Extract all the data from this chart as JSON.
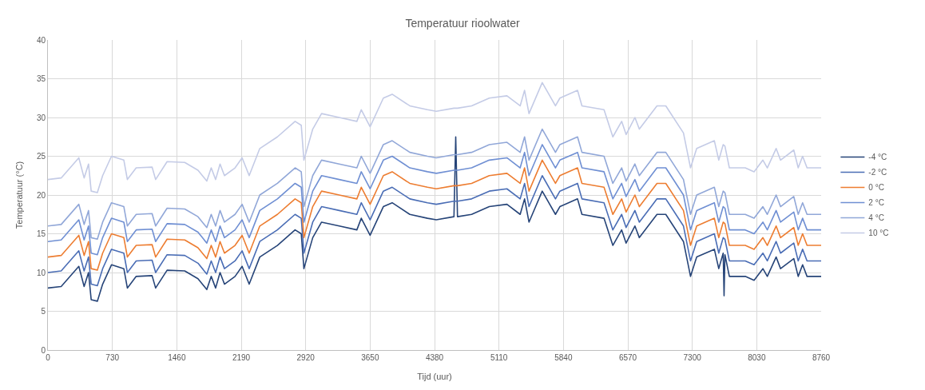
{
  "chart_data": {
    "type": "line",
    "title": "Temperatuur rioolwater",
    "xlabel": "Tijd (uur)",
    "ylabel": "Temperatuur (°C)",
    "x": [
      0,
      150,
      350,
      410,
      460,
      490,
      560,
      620,
      720,
      860,
      900,
      1000,
      1180,
      1220,
      1350,
      1550,
      1700,
      1800,
      1850,
      1900,
      1950,
      2000,
      2120,
      2200,
      2280,
      2400,
      2600,
      2800,
      2870,
      2900,
      3000,
      3100,
      3300,
      3500,
      3550,
      3650,
      3800,
      3900,
      4100,
      4300,
      4400,
      4600,
      4620,
      4640,
      4800,
      5000,
      5200,
      5350,
      5400,
      5450,
      5600,
      5750,
      5800,
      6000,
      6050,
      6300,
      6400,
      6500,
      6550,
      6650,
      6700,
      6900,
      7000,
      7200,
      7280,
      7350,
      7550,
      7600,
      7650,
      7660,
      7670,
      7720,
      7900,
      8000,
      8100,
      8150,
      8250,
      8300,
      8450,
      8500,
      8550,
      8600,
      8760
    ],
    "series": [
      {
        "name": "-4 °C",
        "color": "#264478",
        "values": [
          8,
          8.2,
          10.8,
          8.2,
          10,
          6.5,
          6.3,
          8.5,
          11,
          10.5,
          8,
          9.5,
          9.6,
          8,
          10.3,
          10.2,
          9.2,
          7.8,
          9.5,
          8,
          10,
          8.5,
          9.5,
          10.8,
          8.5,
          12,
          13.5,
          15.5,
          15,
          10.5,
          14.5,
          16.5,
          16,
          15.5,
          17,
          14.8,
          18.5,
          19,
          17.5,
          17,
          16.8,
          17.2,
          27.5,
          17.2,
          17.5,
          18.5,
          18.8,
          17.5,
          19.5,
          16.5,
          20.5,
          17.5,
          18.5,
          19.5,
          17.5,
          17,
          13.5,
          15.5,
          13.8,
          16,
          14.5,
          17.5,
          17.5,
          14,
          9.5,
          12,
          13,
          10.5,
          12.5,
          7,
          12.3,
          9.5,
          9.5,
          9,
          10.5,
          9.5,
          12,
          10.5,
          11.8,
          9.5,
          11,
          9.5,
          9.5
        ]
      },
      {
        "name": "-2 °C",
        "color": "#4a6db5",
        "values": [
          10,
          10.2,
          12.8,
          10.2,
          12,
          8.5,
          8.3,
          10.5,
          13,
          12.5,
          10,
          11.5,
          11.6,
          10,
          12.3,
          12.2,
          11.2,
          9.8,
          11.5,
          10,
          12,
          10.5,
          11.5,
          12.8,
          10.5,
          14,
          15.5,
          17.5,
          17,
          12.5,
          16.5,
          18.5,
          18,
          17.5,
          19,
          16.8,
          20.5,
          21,
          19.5,
          19,
          18.8,
          19.2,
          19.2,
          19.2,
          19.5,
          20.5,
          20.8,
          19.5,
          21.5,
          18.5,
          22.5,
          19.5,
          20.5,
          21.5,
          19.5,
          19,
          15.5,
          17.5,
          15.8,
          18,
          16.5,
          19.5,
          19.5,
          16,
          11.5,
          14,
          15,
          12.5,
          14.5,
          14.4,
          14.3,
          11.5,
          11.5,
          11,
          12.5,
          11.5,
          14,
          12.5,
          13.8,
          11.5,
          13,
          11.5,
          11.5
        ]
      },
      {
        "name": "0 °C",
        "color": "#ed7d31",
        "values": [
          12,
          12.2,
          14.8,
          12.2,
          14,
          10.5,
          10.3,
          12.5,
          15,
          14.5,
          12,
          13.5,
          13.6,
          12,
          14.3,
          14.2,
          13.2,
          11.8,
          13.5,
          12,
          14,
          12.5,
          13.5,
          14.8,
          12.5,
          16,
          17.5,
          19.5,
          19,
          14.5,
          18.5,
          20.5,
          20,
          19.5,
          21,
          18.8,
          22.5,
          23,
          21.5,
          21,
          20.8,
          21.2,
          21.2,
          21.2,
          21.5,
          22.5,
          22.8,
          21.5,
          23.5,
          20.5,
          24.5,
          21.5,
          22.5,
          23.5,
          21.5,
          21,
          17.5,
          19.5,
          17.8,
          20,
          18.5,
          21.5,
          21.5,
          18,
          13.5,
          16,
          17,
          14.5,
          16.5,
          16.4,
          16.3,
          13.5,
          13.5,
          13,
          14.5,
          13.5,
          16,
          14.5,
          15.8,
          13.5,
          15,
          13.5,
          13.5
        ]
      },
      {
        "name": "2 °C",
        "color": "#6f8fd3",
        "values": [
          14,
          14.2,
          16.8,
          14.2,
          16,
          12.5,
          12.3,
          14.5,
          17,
          16.5,
          14,
          15.5,
          15.6,
          14,
          16.3,
          16.2,
          15.2,
          13.8,
          15.5,
          14,
          16,
          14.5,
          15.5,
          16.8,
          14.5,
          18,
          19.5,
          21.5,
          21,
          16.5,
          20.5,
          22.5,
          22,
          21.5,
          23,
          20.8,
          24.5,
          25,
          23.5,
          23,
          22.8,
          23.2,
          23.2,
          23.2,
          23.5,
          24.5,
          24.8,
          23.5,
          25.5,
          22.5,
          26.5,
          23.5,
          24.5,
          25.5,
          23.5,
          23,
          19.5,
          21.5,
          19.8,
          22,
          20.5,
          23.5,
          23.5,
          20,
          15.5,
          18,
          19,
          16.5,
          18.5,
          18.4,
          18.3,
          15.5,
          15.5,
          15,
          16.5,
          15.5,
          18,
          16.5,
          17.8,
          15.5,
          17,
          15.5,
          15.5
        ]
      },
      {
        "name": "4 °C",
        "color": "#91a7d8",
        "values": [
          16,
          16.2,
          18.8,
          16.2,
          18,
          14.5,
          14.3,
          16.5,
          19,
          18.5,
          16,
          17.5,
          17.6,
          16,
          18.3,
          18.2,
          17.2,
          15.8,
          17.5,
          16,
          18,
          16.5,
          17.5,
          18.8,
          16.5,
          20,
          21.5,
          23.5,
          23,
          18.5,
          22.5,
          24.5,
          24,
          23.5,
          25,
          22.8,
          26.5,
          27,
          25.5,
          25,
          24.8,
          25.2,
          25.2,
          25.2,
          25.5,
          26.5,
          26.8,
          25.5,
          27.5,
          24.5,
          28.5,
          25.5,
          26.5,
          27.5,
          25.5,
          25,
          21.5,
          23.5,
          21.8,
          24,
          22.5,
          25.5,
          25.5,
          22,
          17.5,
          20,
          21,
          18.5,
          20.5,
          20.4,
          20.3,
          17.5,
          17.5,
          17,
          18.5,
          17.5,
          20,
          18.5,
          19.8,
          17.5,
          19,
          17.5,
          17.5
        ]
      },
      {
        "name": "10 °C",
        "color": "#c4cbe6",
        "values": [
          22,
          22.2,
          24.8,
          22.2,
          24,
          20.5,
          20.3,
          22.5,
          25,
          24.5,
          22,
          23.5,
          23.6,
          22,
          24.3,
          24.2,
          23.2,
          21.8,
          23.5,
          22,
          24,
          22.5,
          23.5,
          24.8,
          22.5,
          26,
          27.5,
          29.5,
          29,
          24.5,
          28.5,
          30.5,
          30,
          29.5,
          31,
          28.8,
          32.5,
          33,
          31.5,
          31,
          30.8,
          31.2,
          31.2,
          31.2,
          31.5,
          32.5,
          32.8,
          31.5,
          33.5,
          30.5,
          34.5,
          31.5,
          32.5,
          33.5,
          31.5,
          31,
          27.5,
          29.5,
          27.8,
          30,
          28.5,
          31.5,
          31.5,
          28,
          23.5,
          26,
          27,
          24.5,
          26.5,
          26.4,
          26.3,
          23.5,
          23.5,
          23,
          24.5,
          23.5,
          26,
          24.5,
          25.8,
          23.5,
          25,
          23.5,
          23.5
        ]
      }
    ],
    "xlim": [
      0,
      8760
    ],
    "xticks": [
      0,
      730,
      1460,
      2190,
      2920,
      3650,
      4380,
      5110,
      5840,
      6570,
      7300,
      8030,
      8760
    ],
    "ylim": [
      0,
      40
    ],
    "yticks": [
      0,
      5,
      10,
      15,
      20,
      25,
      30,
      35,
      40
    ],
    "grid": true,
    "legend": "right",
    "marker": "none",
    "line_style": "solid"
  }
}
